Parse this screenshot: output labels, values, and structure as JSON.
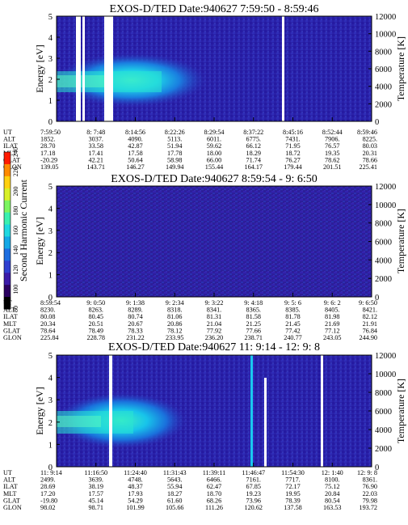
{
  "figure": {
    "colorbar": {
      "label": "Second Harmonic Current",
      "ticks": [
        "240",
        "220",
        "200",
        "180",
        "160",
        "140",
        "120",
        "100",
        "80"
      ],
      "colors": [
        "#000000",
        "#2a0060",
        "#3a1aa8",
        "#2f3fd0",
        "#1d6ee0",
        "#14a8e6",
        "#1fd8e0",
        "#3af0b0",
        "#7cf560",
        "#d8f028",
        "#ffd010",
        "#ff8a00",
        "#ff1a00"
      ]
    }
  },
  "chart_data": [
    {
      "type": "heatmap",
      "title": "EXOS-D/TED   Date:940627  7:59:50 - 8:59:46",
      "ylabel": "Energy [eV]",
      "y2label": "Temperature [K]",
      "ylim": [
        0,
        5
      ],
      "y2lim": [
        0,
        12000
      ],
      "yticks": [
        "0",
        "1",
        "2",
        "3",
        "4",
        "5"
      ],
      "y2ticks": [
        "0",
        "2000",
        "4000",
        "6000",
        "8000",
        "10000",
        "12000"
      ],
      "rows": [
        {
          "label": "UT",
          "values": [
            "7:59:50",
            "8: 7:48",
            "8:14:56",
            "8:22:26",
            "8:29:54",
            "8:37:22",
            "8:45:16",
            "8:52:44",
            "8:59:46"
          ]
        },
        {
          "label": "ALT",
          "values": [
            "1852.",
            "3037.",
            "4090.",
            "5113.",
            "6011.",
            "6775.",
            "7431.",
            "7906.",
            "8225."
          ]
        },
        {
          "label": "ILAT",
          "values": [
            "28.70",
            "33.58",
            "42.87",
            "51.94",
            "59.62",
            "66.12",
            "71.95",
            "76.57",
            "80.03"
          ]
        },
        {
          "label": "MLT",
          "values": [
            "17.18",
            "17.41",
            "17.58",
            "17.78",
            "18.00",
            "18.29",
            "18.72",
            "19.35",
            "20.31"
          ]
        },
        {
          "label": "GLAT",
          "values": [
            "-20.29",
            "42.21",
            "50.64",
            "58.98",
            "66.00",
            "71.74",
            "76.27",
            "78.62",
            "78.66"
          ]
        },
        {
          "label": "GLON",
          "values": [
            "139.05",
            "143.71",
            "146.27",
            "149.94",
            "155.44",
            "164.17",
            "179.44",
            "201.51",
            "225.41"
          ]
        }
      ]
    },
    {
      "type": "heatmap",
      "title": "EXOS-D/TED   Date:940627  8:59:54 - 9: 6:50",
      "ylabel": "Energy [eV]",
      "y2label": "Temperature [K]",
      "ylim": [
        0,
        5
      ],
      "y2lim": [
        0,
        12000
      ],
      "yticks": [
        "0",
        "1",
        "2",
        "3",
        "4",
        "5"
      ],
      "y2ticks": [
        "0",
        "2000",
        "4000",
        "6000",
        "8000",
        "10000",
        "12000"
      ],
      "rows": [
        {
          "label": "UT",
          "values": [
            "8:59:54",
            "9: 0:50",
            "9: 1:38",
            "9: 2:34",
            "9: 3:22",
            "9: 4:18",
            "9: 5: 6",
            "9: 6: 2",
            "9: 6:50"
          ]
        },
        {
          "label": "ALT",
          "values": [
            "8230.",
            "8263.",
            "8289.",
            "8318.",
            "8341.",
            "8365.",
            "8385.",
            "8405.",
            "8421."
          ]
        },
        {
          "label": "ILAT",
          "values": [
            "80.08",
            "80.45",
            "80.74",
            "81.06",
            "81.31",
            "81.58",
            "81.78",
            "81.98",
            "82.12"
          ]
        },
        {
          "label": "MLT",
          "values": [
            "20.34",
            "20.51",
            "20.67",
            "20.86",
            "21.04",
            "21.25",
            "21.45",
            "21.69",
            "21.91"
          ]
        },
        {
          "label": "GLAT",
          "values": [
            "78.64",
            "78.49",
            "78.33",
            "78.12",
            "77.92",
            "77.66",
            "77.42",
            "77.12",
            "76.84"
          ]
        },
        {
          "label": "GLON",
          "values": [
            "225.84",
            "228.78",
            "231.22",
            "233.95",
            "236.20",
            "238.71",
            "240.77",
            "243.05",
            "244.90"
          ]
        }
      ]
    },
    {
      "type": "heatmap",
      "title": "EXOS-D/TED   Date:940627  11: 9:14 - 12: 9: 8",
      "ylabel": "Energy [eV]",
      "y2label": "Temperature [K]",
      "ylim": [
        0,
        5
      ],
      "y2lim": [
        0,
        12000
      ],
      "yticks": [
        "0",
        "1",
        "2",
        "3",
        "4",
        "5"
      ],
      "y2ticks": [
        "0",
        "2000",
        "4000",
        "6000",
        "8000",
        "10000",
        "12000"
      ],
      "rows": [
        {
          "label": "UT",
          "values": [
            "11: 9:14",
            "11:16:50",
            "11:24:40",
            "11:31:43",
            "11:39:11",
            "11:46:47",
            "11:54:30",
            "12: 1:40",
            "12: 9: 8"
          ]
        },
        {
          "label": "ALT",
          "values": [
            "2499.",
            "3639.",
            "4748.",
            "5643.",
            "6466.",
            "7161.",
            "7717.",
            "8100.",
            "8361."
          ]
        },
        {
          "label": "ILAT",
          "values": [
            "28.69",
            "38.19",
            "48.37",
            "55.94",
            "62.47",
            "67.85",
            "72.17",
            "75.12",
            "76.90"
          ]
        },
        {
          "label": "MLT",
          "values": [
            "17.20",
            "17.57",
            "17.93",
            "18.27",
            "18.70",
            "19.23",
            "19.95",
            "20.84",
            "22.03"
          ]
        },
        {
          "label": "GLAT",
          "values": [
            "-19.80",
            "45.14",
            "54.29",
            "61.60",
            "68.26",
            "73.96",
            "78.39",
            "80.54",
            "79.98"
          ]
        },
        {
          "label": "GLON",
          "values": [
            "98.02",
            "98.71",
            "101.99",
            "105.66",
            "111.26",
            "120.62",
            "137.58",
            "163.53",
            "193.72"
          ]
        }
      ]
    }
  ]
}
